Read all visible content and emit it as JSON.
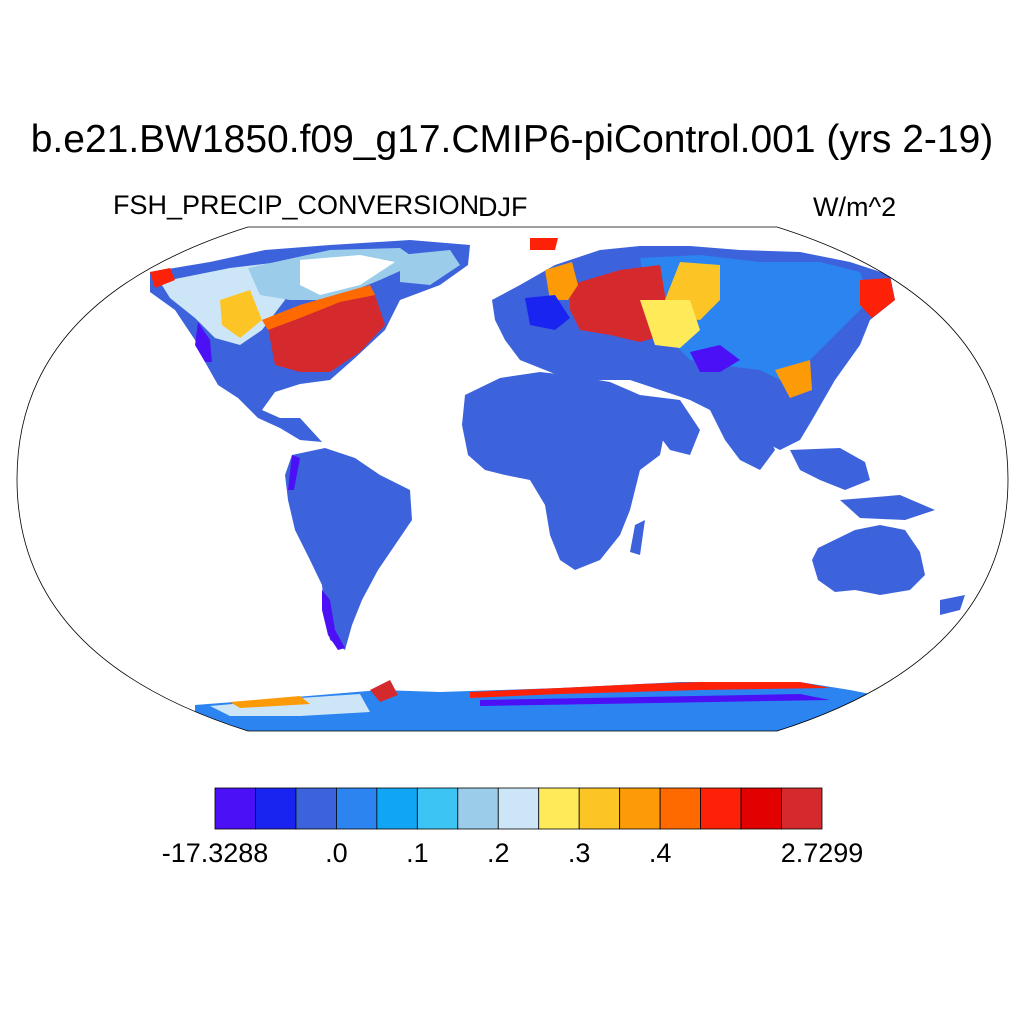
{
  "title": "b.e21.BW1850.f09_g17.CMIP6-piControl.001 (yrs 2-19)",
  "left_label": "FSH_PRECIP_CONVERSION",
  "center_label": "DJF",
  "right_label": "W/m^2",
  "colorbar": {
    "colors": [
      "#4b10f5",
      "#1a24f0",
      "#3d63dc",
      "#2b84f0",
      "#10a6f5",
      "#3cc4f4",
      "#9bcdeb",
      "#cde6f7",
      "#ffeb5a",
      "#fcc525",
      "#fc9b07",
      "#ff6a00",
      "#fd2107",
      "#e00100",
      "#d42a2d"
    ],
    "labels": [
      {
        "text": "-17.3288",
        "boundary": 0
      },
      {
        "text": ".0",
        "boundary": 3
      },
      {
        "text": ".1",
        "boundary": 5
      },
      {
        "text": ".2",
        "boundary": 7
      },
      {
        "text": ".3",
        "boundary": 9
      },
      {
        "text": ".4",
        "boundary": 11
      },
      {
        "text": "2.7299",
        "boundary": 15
      }
    ]
  }
}
